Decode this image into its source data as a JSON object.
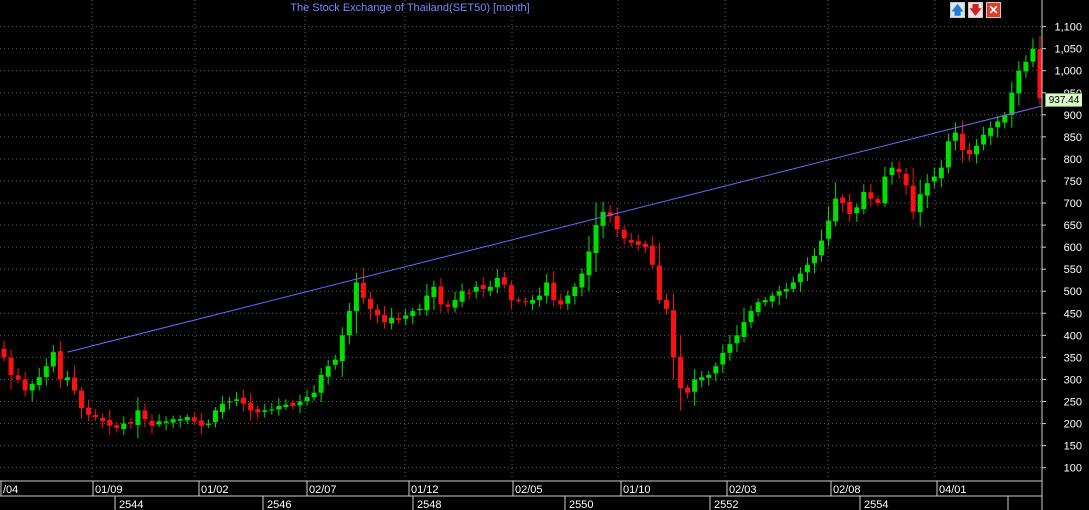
{
  "window": {
    "title": "The Stock Exchange of Thailand(SET50) [month]",
    "buttons": {
      "move_up": "🡅",
      "move_down": "🡇",
      "close": "✕"
    }
  },
  "colors": {
    "up": "#00e000",
    "down": "#ff1010",
    "trendline": "#6a6aff",
    "grid": "#5a5a5a",
    "text": "#ffffff",
    "background": "#000000"
  },
  "chart_data": {
    "type": "candlestick",
    "title": "The Stock Exchange of Thailand(SET50) [month]",
    "ylim": [
      72,
      1115
    ],
    "y_ticks": [
      100,
      150,
      200,
      250,
      300,
      350,
      400,
      450,
      500,
      550,
      600,
      650,
      700,
      750,
      800,
      850,
      900,
      950,
      1000,
      1050,
      1100
    ],
    "y_tick_labels": [
      "100",
      "150",
      "200",
      "250",
      "300",
      "350",
      "400",
      "450",
      "500",
      "550",
      "600",
      "650",
      "700",
      "750",
      "800",
      "850",
      "900",
      "950",
      "1,000",
      "1,050",
      "1,100"
    ],
    "grid": true,
    "x_month_labels": [
      "/04",
      "01/09",
      "01/02",
      "02/07",
      "01/12",
      "02/05",
      "01/10",
      "02/03",
      "02/08",
      "04/01"
    ],
    "x_year_labels": [
      "2544",
      "2546",
      "2548",
      "2550",
      "2552",
      "2554"
    ],
    "last_price_label": "937.44",
    "trendline": {
      "start_index": 9,
      "start_value": 362,
      "end_value": 920,
      "color": "#6a6aff"
    },
    "closes": [
      350,
      310,
      300,
      275,
      290,
      305,
      330,
      362,
      300,
      305,
      275,
      235,
      220,
      215,
      205,
      195,
      190,
      200,
      200,
      230,
      210,
      195,
      205,
      205,
      210,
      210,
      215,
      205,
      195,
      200,
      230,
      245,
      250,
      255,
      245,
      230,
      225,
      230,
      232,
      240,
      243,
      240,
      250,
      260,
      270,
      310,
      330,
      345,
      400,
      455,
      520,
      485,
      460,
      445,
      430,
      440,
      435,
      445,
      455,
      460,
      490,
      510,
      470,
      465,
      480,
      500,
      495,
      510,
      505,
      510,
      530,
      515,
      480,
      480,
      475,
      480,
      490,
      520,
      480,
      470,
      490,
      510,
      540,
      590,
      650,
      680,
      670,
      640,
      620,
      610,
      605,
      600,
      560,
      480,
      460,
      350,
      280,
      270,
      300,
      305,
      310,
      330,
      360,
      380,
      400,
      430,
      455,
      475,
      480,
      490,
      500,
      505,
      520,
      540,
      560,
      580,
      615,
      660,
      710,
      700,
      675,
      690,
      725,
      710,
      700,
      760,
      780,
      770,
      740,
      680,
      720,
      745,
      760,
      780,
      840,
      860,
      820,
      810,
      830,
      855,
      870,
      885,
      900,
      950,
      1000,
      1020,
      1050,
      937.44
    ]
  }
}
